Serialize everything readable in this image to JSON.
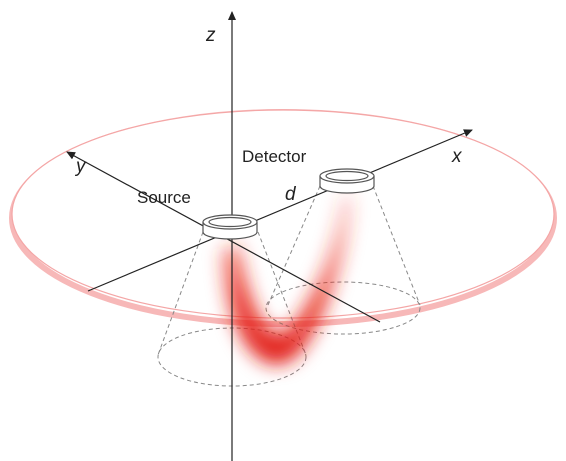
{
  "axes": {
    "x": "x",
    "y": "y",
    "z": "z"
  },
  "labels": {
    "detector": "Detector",
    "source": "Source",
    "distance": "d"
  }
}
